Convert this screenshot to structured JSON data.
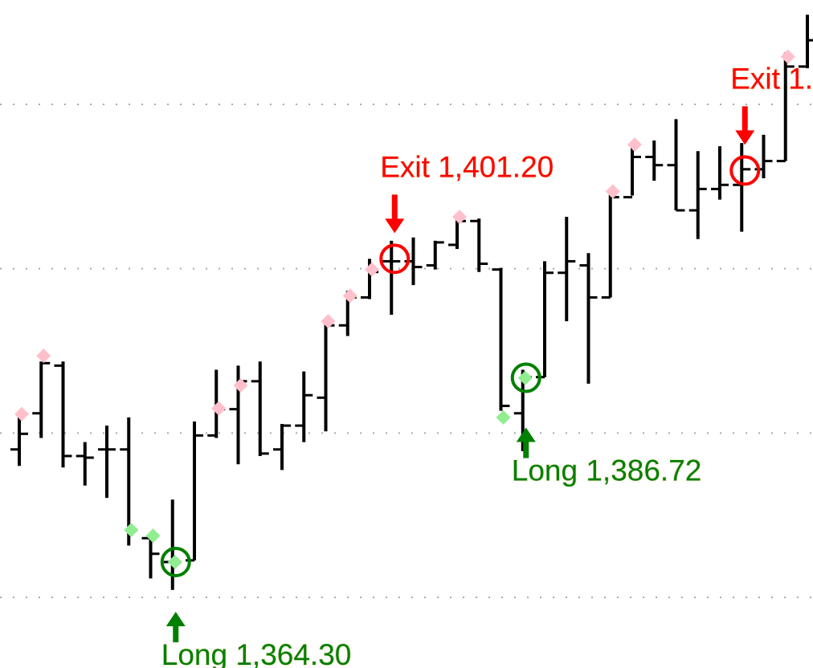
{
  "chart_data": {
    "type": "ohlc",
    "ylim": [
      1351.4,
      1432.7
    ],
    "yticks": [
      1360,
      1380,
      1400,
      1420
    ],
    "grid": true,
    "bar_color": "#000000",
    "open": [
      1378.0,
      1382.4,
      1388.2,
      1377.2,
      1378.0,
      1378.0,
      1367.2,
      1364.3,
      1364.5,
      1379.7,
      1382.9,
      1386.3,
      1378.0,
      1380.9,
      1384.3,
      1393.1,
      1396.5,
      1400.9,
      1400.9,
      1400.4,
      1402.9,
      1405.8,
      1399.9,
      1382.4,
      1386.8,
      1399.5,
      1400.4,
      1396.5,
      1408.7,
      1413.6,
      1412.6,
      1407.1,
      1409.7,
      1410.2,
      1412.1,
      1413.1,
      1424.6
    ],
    "high": [
      1382.4,
      1388.7,
      1388.7,
      1378.9,
      1380.9,
      1381.9,
      1367.7,
      1371.9,
      1381.4,
      1387.7,
      1388.2,
      1388.7,
      1381.1,
      1387.5,
      1393.6,
      1397.3,
      1401.2,
      1403.4,
      1403.8,
      1403.4,
      1406.5,
      1406.1,
      1400.1,
      1387.7,
      1400.9,
      1406.3,
      1401.9,
      1409.2,
      1415.1,
      1415.6,
      1418.2,
      1414.3,
      1414.9,
      1415.3,
      1416.3,
      1426.3,
      1430.9
    ],
    "low": [
      1376.0,
      1379.4,
      1375.8,
      1373.6,
      1372.1,
      1366.3,
      1362.3,
      1360.9,
      1364.5,
      1379.4,
      1376.2,
      1377.2,
      1375.5,
      1378.9,
      1380.2,
      1391.8,
      1396.3,
      1394.4,
      1398.0,
      1399.9,
      1402.4,
      1399.6,
      1382.7,
      1377.8,
      1386.8,
      1393.6,
      1386.0,
      1396.5,
      1408.9,
      1410.7,
      1407.1,
      1403.6,
      1408.4,
      1404.5,
      1411.0,
      1413.1,
      1424.4
    ],
    "close": [
      1379.9,
      1388.5,
      1377.2,
      1377.0,
      1378.0,
      1368.2,
      1365.3,
      1364.3,
      1379.7,
      1382.9,
      1386.3,
      1377.5,
      1380.9,
      1384.6,
      1393.1,
      1396.5,
      1399.6,
      1400.9,
      1400.2,
      1403.2,
      1405.8,
      1400.6,
      1383.3,
      1386.8,
      1399.5,
      1400.9,
      1396.5,
      1408.7,
      1413.6,
      1412.6,
      1407.1,
      1409.7,
      1410.2,
      1412.1,
      1413.1,
      1424.6,
      1427.8
    ],
    "dot_series": [
      {
        "color": "#ffc0cb",
        "values": [
          1382.3,
          1389.4,
          null,
          null,
          null,
          null,
          null,
          null,
          null,
          1383.0,
          1385.8,
          null,
          null,
          null,
          1393.6,
          1396.7,
          1399.9,
          null,
          null,
          null,
          1406.3,
          null,
          null,
          null,
          null,
          null,
          null,
          1409.4,
          1415.1,
          null,
          null,
          null,
          null,
          null,
          null,
          1425.8,
          null
        ]
      },
      {
        "color": "#90ee90",
        "values": [
          null,
          null,
          null,
          null,
          null,
          1368.2,
          1367.5,
          1364.3,
          null,
          null,
          null,
          null,
          null,
          null,
          null,
          null,
          null,
          null,
          null,
          null,
          null,
          null,
          1381.9,
          1386.7,
          null,
          null,
          null,
          null,
          null,
          null,
          null,
          null,
          null,
          null,
          null,
          null,
          null
        ]
      }
    ],
    "signals": [
      {
        "label": "Long 1,364.30",
        "bar": 7,
        "price": 1364.3,
        "direction": "long",
        "color": "#008000"
      },
      {
        "label": "Exit 1,401.20",
        "bar": 17,
        "price": 1401.2,
        "direction": "exit",
        "color": "#ff0000"
      },
      {
        "label": "Long 1,386.72",
        "bar": 23,
        "price": 1386.72,
        "direction": "long",
        "color": "#008000"
      },
      {
        "label": "Exit 1.",
        "bar": 33,
        "price": 1411.95,
        "direction": "exit",
        "color": "#ff0000"
      }
    ]
  }
}
